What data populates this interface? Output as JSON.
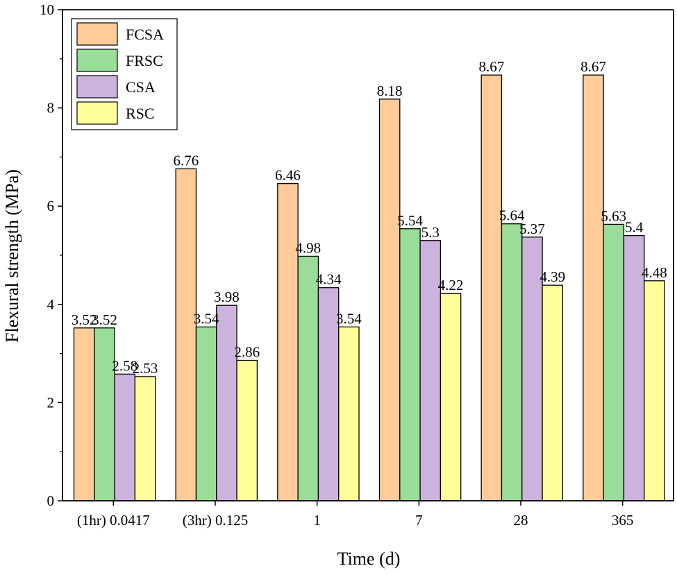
{
  "chart_data": {
    "type": "bar",
    "title": "",
    "xlabel": "Time (d)",
    "ylabel": "Flexural strength (MPa)",
    "ylim": [
      0,
      10
    ],
    "yticks": [
      0,
      2,
      4,
      6,
      8,
      10
    ],
    "categories": [
      "(1hr) 0.0417",
      "(3hr) 0.125",
      "1",
      "7",
      "28",
      "365"
    ],
    "legend_position": "top-left",
    "series": [
      {
        "name": "FCSA",
        "color": "#FFCC99",
        "values": [
          3.52,
          6.76,
          6.46,
          8.18,
          8.67,
          8.67
        ],
        "labels": [
          "3.52",
          "6.76",
          "6.46",
          "8.18",
          "8.67",
          "8.67"
        ]
      },
      {
        "name": "FRSC",
        "color": "#99DD99",
        "values": [
          3.52,
          3.54,
          4.98,
          5.54,
          5.64,
          5.63
        ],
        "labels": [
          "3.52",
          "3.54",
          "4.98",
          "5.54",
          "5.64",
          "5.63"
        ]
      },
      {
        "name": "CSA",
        "color": "#CCB3DD",
        "values": [
          2.58,
          3.98,
          4.34,
          5.3,
          5.37,
          5.4
        ],
        "labels": [
          "2.58",
          "3.98",
          "4.34",
          "5.3",
          "5.37",
          "5.4"
        ]
      },
      {
        "name": "RSC",
        "color": "#FFFF99",
        "values": [
          2.53,
          2.86,
          3.54,
          4.22,
          4.39,
          4.48
        ],
        "labels": [
          "2.53",
          "2.86",
          "3.54",
          "4.22",
          "4.39",
          "4.48"
        ]
      }
    ]
  }
}
